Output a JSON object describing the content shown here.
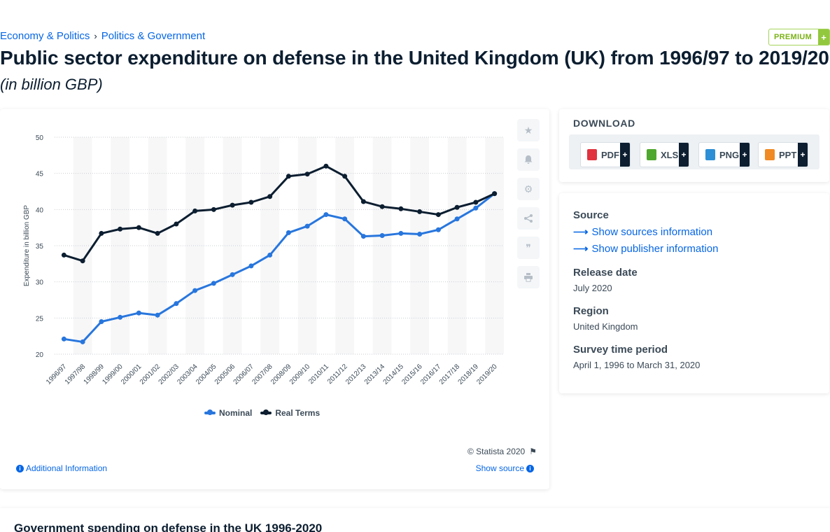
{
  "breadcrumb": {
    "item1": "Economy & Politics",
    "sep": "›",
    "item2": "Politics & Government"
  },
  "premium": {
    "label": "PREMIUM",
    "plus": "+"
  },
  "title": "Public sector expenditure on defense in the United Kingdom (UK) from 1996/97 to 2019/20",
  "subtitle": "(in billion GBP)",
  "chart_data": {
    "type": "line",
    "categories": [
      "1996/97",
      "1997/98",
      "1998/99",
      "1999/00",
      "2000/01",
      "2001/02",
      "2002/03",
      "2003/04",
      "2004/05",
      "2005/06",
      "2006/07",
      "2007/08",
      "2008/09",
      "2009/10",
      "2010/11",
      "2011/12",
      "2012/13",
      "2013/14",
      "2014/15",
      "2015/16",
      "2016/17",
      "2017/18",
      "2018/19",
      "2019/20"
    ],
    "series": [
      {
        "name": "Nominal",
        "color": "#2876dd",
        "values": [
          22.1,
          21.7,
          24.5,
          25.1,
          25.7,
          25.4,
          27.0,
          28.8,
          29.8,
          31.0,
          32.2,
          33.7,
          36.8,
          37.7,
          39.3,
          38.7,
          36.3,
          36.4,
          36.7,
          36.6,
          37.2,
          38.7,
          40.2,
          42.2
        ]
      },
      {
        "name": "Real Terms",
        "color": "#0c1e30",
        "values": [
          33.7,
          32.9,
          36.7,
          37.3,
          37.5,
          36.7,
          38.0,
          39.8,
          40.0,
          40.6,
          41.0,
          41.8,
          44.6,
          44.9,
          46.0,
          44.6,
          41.1,
          40.4,
          40.1,
          39.7,
          39.3,
          40.3,
          41.0,
          42.2
        ]
      }
    ],
    "ylabel": "Expenditure in billion GBP",
    "ylim": [
      20,
      50
    ],
    "yticks": [
      20,
      25,
      30,
      35,
      40,
      45,
      50
    ],
    "grid": true,
    "legend_position": "bottom-center"
  },
  "chart_footer": {
    "copyright": "© Statista 2020",
    "additional_info": "Additional Information",
    "show_source": "Show source"
  },
  "download": {
    "title": "DOWNLOAD",
    "buttons": [
      {
        "label": "PDF",
        "plus": "+",
        "color": "#e0333f"
      },
      {
        "label": "XLS",
        "plus": "+",
        "color": "#4ea72e"
      },
      {
        "label": "PNG",
        "plus": "+",
        "color": "#2d8fd5"
      },
      {
        "label": "PPT",
        "plus": "+",
        "color": "#f08a24"
      }
    ]
  },
  "details": {
    "source_head": "Source",
    "show_sources": "Show sources information",
    "show_publisher": "Show publisher information",
    "release_head": "Release date",
    "release_val": "July 2020",
    "region_head": "Region",
    "region_val": "United Kingdom",
    "period_head": "Survey time period",
    "period_val": "April 1, 1996 to March 31, 2020"
  },
  "bottom": {
    "title": "Government spending on defense in the UK 1996-2020"
  }
}
